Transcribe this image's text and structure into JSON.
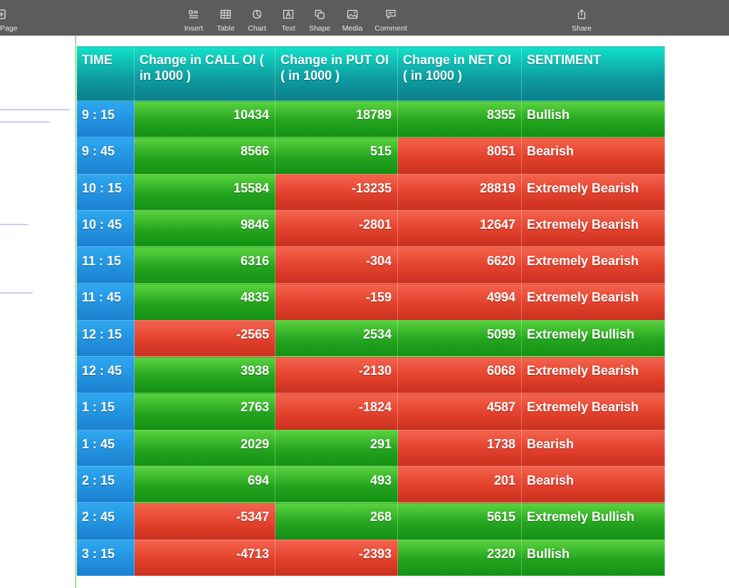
{
  "toolbar": {
    "page": "Page",
    "insert": "Insert",
    "table": "Table",
    "chart": "Chart",
    "text": "Text",
    "shape": "Shape",
    "media": "Media",
    "comment": "Comment",
    "share": "Share"
  },
  "colors": {
    "bullish": "#24a41f",
    "bearish": "#e2402c",
    "header": "#0d9aa0",
    "time": "#1b80cf",
    "toolbar": "#5c5c5c"
  },
  "table": {
    "headers": {
      "time": "TIME",
      "call": "Change in CALL OI ( in 1000 )",
      "put": "Change in PUT OI ( in 1000 )",
      "net": "Change in NET OI ( in 1000 )",
      "sentiment": "SENTIMENT"
    },
    "rows": [
      {
        "time": "9 : 15",
        "call": "10434",
        "put": "18789",
        "net": "8355",
        "sentiment": "Bullish"
      },
      {
        "time": "9 : 45",
        "call": "8566",
        "put": "515",
        "net": "8051",
        "sentiment": "Bearish"
      },
      {
        "time": "10 : 15",
        "call": "15584",
        "put": "-13235",
        "net": "28819",
        "sentiment": "Extremely Bearish"
      },
      {
        "time": "10 : 45",
        "call": "9846",
        "put": "-2801",
        "net": "12647",
        "sentiment": "Extremely Bearish"
      },
      {
        "time": "11 : 15",
        "call": "6316",
        "put": "-304",
        "net": "6620",
        "sentiment": "Extremely Bearish"
      },
      {
        "time": "11 : 45",
        "call": "4835",
        "put": "-159",
        "net": "4994",
        "sentiment": "Extremely Bearish"
      },
      {
        "time": "12 : 15",
        "call": "-2565",
        "put": "2534",
        "net": "5099",
        "sentiment": "Extremely Bullish"
      },
      {
        "time": "12 : 45",
        "call": "3938",
        "put": "-2130",
        "net": "6068",
        "sentiment": "Extremely Bearish"
      },
      {
        "time": "1 : 15",
        "call": "2763",
        "put": "-1824",
        "net": "4587",
        "sentiment": "Extremely Bearish"
      },
      {
        "time": "1 : 45",
        "call": "2029",
        "put": "291",
        "net": "1738",
        "sentiment": "Bearish"
      },
      {
        "time": "2 : 15",
        "call": "694",
        "put": "493",
        "net": "201",
        "sentiment": "Bearish"
      },
      {
        "time": "2 : 45",
        "call": "-5347",
        "put": "268",
        "net": "5615",
        "sentiment": "Extremely Bullish"
      },
      {
        "time": "3 : 15",
        "call": "-4713",
        "put": "-2393",
        "net": "2320",
        "sentiment": "Bullish"
      }
    ]
  }
}
